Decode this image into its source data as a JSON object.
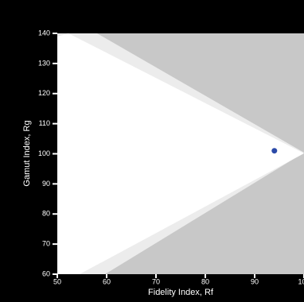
{
  "chart_data": {
    "type": "scatter",
    "x_label": "Fidelity Index, Rf",
    "y_label": "Gamut Index, Rg",
    "xlim": [
      50,
      100
    ],
    "ylim": [
      60,
      140
    ],
    "xticks": [
      50,
      60,
      70,
      80,
      90,
      100
    ],
    "yticks": [
      60,
      70,
      80,
      90,
      100,
      110,
      120,
      130,
      140
    ],
    "series": [
      {
        "color": "#2b4aa8",
        "x": [
          94
        ],
        "y": [
          101
        ]
      }
    ]
  }
}
